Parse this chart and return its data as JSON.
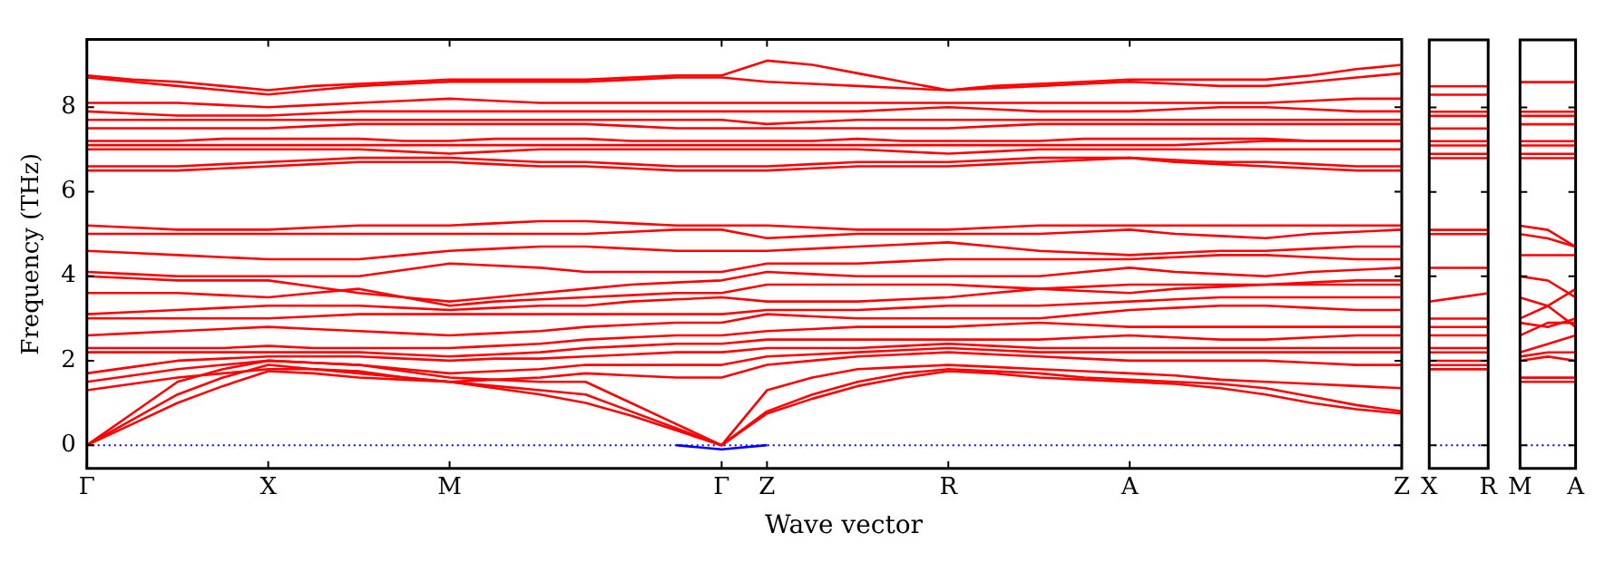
{
  "chart_data": [
    {
      "type": "line",
      "xlabel": "Wave vector",
      "ylabel": "Frequency (THz)",
      "marker": "none",
      "ylim": [
        -0.55,
        9.6
      ],
      "yticks": [
        0,
        2,
        4,
        6,
        8
      ],
      "categories": [
        "Γ",
        null,
        null,
        null,
        "X",
        null,
        null,
        null,
        "M",
        null,
        null,
        null,
        null,
        null,
        "Γ",
        "Z",
        null,
        null,
        null,
        "R",
        null,
        null,
        null,
        "A",
        null,
        null,
        null,
        null,
        null,
        "Z"
      ],
      "ref_lines": [
        {
          "axis": "y",
          "value": 0,
          "color": "#0000ff",
          "line_style": "dotted"
        }
      ],
      "series": [
        {
          "color": "#ff0000",
          "values": [
            0,
            0.5,
            1.0,
            1.4,
            1.75,
            1.7,
            1.6,
            1.55,
            1.5,
            1.35,
            1.2,
            1.0,
            0.7,
            0.35,
            0,
            0.75,
            1.1,
            1.4,
            1.6,
            1.75,
            1.7,
            1.6,
            1.55,
            1.5,
            1.45,
            1.35,
            1.2,
            1.0,
            0.85,
            0.75
          ]
        },
        {
          "color": "#ff0000",
          "values": [
            0,
            0.6,
            1.2,
            1.6,
            1.9,
            1.8,
            1.7,
            1.6,
            1.5,
            1.4,
            1.3,
            1.2,
            0.8,
            0.4,
            0,
            0.8,
            1.2,
            1.5,
            1.7,
            1.8,
            1.75,
            1.7,
            1.6,
            1.55,
            1.5,
            1.45,
            1.35,
            1.15,
            0.95,
            0.8
          ]
        },
        {
          "color": "#ff0000",
          "values": [
            0,
            0.75,
            1.5,
            1.8,
            2.0,
            1.95,
            1.9,
            1.75,
            1.6,
            1.55,
            1.5,
            1.5,
            1.0,
            0.5,
            0,
            1.3,
            1.6,
            1.8,
            1.85,
            1.9,
            1.85,
            1.8,
            1.75,
            1.7,
            1.65,
            1.55,
            1.5,
            1.45,
            1.4,
            1.35
          ]
        },
        {
          "color": "#ff0000",
          "values": [
            1.3,
            1.45,
            1.6,
            1.7,
            1.8,
            1.8,
            1.75,
            1.6,
            1.5,
            1.55,
            1.6,
            1.7,
            1.65,
            1.6,
            1.6,
            1.9,
            2.0,
            2.1,
            2.15,
            2.2,
            2.15,
            2.1,
            2.05,
            2.0,
            2.0,
            2.0,
            2.0,
            1.95,
            1.9,
            1.9
          ]
        },
        {
          "color": "#ff0000",
          "values": [
            1.5,
            1.65,
            1.8,
            1.9,
            2.0,
            1.95,
            1.9,
            1.8,
            1.7,
            1.75,
            1.8,
            1.9,
            1.9,
            1.9,
            1.9,
            2.1,
            2.15,
            2.2,
            2.25,
            2.3,
            2.25,
            2.2,
            2.2,
            2.2,
            2.2,
            2.2,
            2.2,
            2.2,
            2.2,
            2.2
          ]
        },
        {
          "color": "#ff0000",
          "values": [
            1.7,
            1.85,
            2.0,
            2.05,
            2.1,
            2.1,
            2.1,
            2.05,
            2.0,
            2.05,
            2.05,
            2.1,
            2.15,
            2.2,
            2.2,
            2.3,
            2.3,
            2.3,
            2.35,
            2.4,
            2.35,
            2.3,
            2.3,
            2.3,
            2.3,
            2.3,
            2.3,
            2.3,
            2.3,
            2.3
          ]
        },
        {
          "color": "#ff0000",
          "values": [
            2.2,
            2.2,
            2.2,
            2.2,
            2.2,
            2.2,
            2.2,
            2.15,
            2.1,
            2.15,
            2.2,
            2.3,
            2.35,
            2.4,
            2.4,
            2.5,
            2.5,
            2.5,
            2.5,
            2.5,
            2.5,
            2.5,
            2.55,
            2.6,
            2.55,
            2.5,
            2.5,
            2.55,
            2.6,
            2.6
          ]
        },
        {
          "color": "#ff0000",
          "values": [
            2.3,
            2.3,
            2.3,
            2.3,
            2.35,
            2.3,
            2.3,
            2.3,
            2.3,
            2.35,
            2.4,
            2.5,
            2.55,
            2.6,
            2.6,
            2.7,
            2.75,
            2.8,
            2.8,
            2.8,
            2.85,
            2.9,
            2.85,
            2.8,
            2.8,
            2.8,
            2.8,
            2.8,
            2.8,
            2.8
          ]
        },
        {
          "color": "#ff0000",
          "values": [
            2.6,
            2.65,
            2.7,
            2.75,
            2.8,
            2.75,
            2.7,
            2.65,
            2.6,
            2.65,
            2.7,
            2.8,
            2.85,
            2.9,
            2.9,
            3.1,
            3.05,
            3.0,
            3.0,
            3.0,
            3.0,
            3.0,
            3.1,
            3.2,
            3.25,
            3.3,
            3.3,
            3.25,
            3.2,
            3.2
          ]
        },
        {
          "color": "#ff0000",
          "values": [
            3.0,
            3.0,
            3.0,
            3.0,
            3.0,
            3.05,
            3.1,
            3.1,
            3.1,
            3.1,
            3.1,
            3.1,
            3.1,
            3.1,
            3.1,
            3.2,
            3.2,
            3.2,
            3.25,
            3.3,
            3.3,
            3.3,
            3.35,
            3.4,
            3.45,
            3.5,
            3.5,
            3.5,
            3.5,
            3.5
          ]
        },
        {
          "color": "#ff0000",
          "values": [
            3.1,
            3.15,
            3.2,
            3.25,
            3.3,
            3.3,
            3.3,
            3.25,
            3.2,
            3.25,
            3.3,
            3.3,
            3.4,
            3.45,
            3.5,
            3.4,
            3.4,
            3.4,
            3.45,
            3.5,
            3.6,
            3.7,
            3.75,
            3.8,
            3.8,
            3.8,
            3.8,
            3.85,
            3.9,
            3.9
          ]
        },
        {
          "color": "#ff0000",
          "values": [
            3.6,
            3.6,
            3.6,
            3.55,
            3.5,
            3.6,
            3.7,
            3.5,
            3.3,
            3.4,
            3.45,
            3.5,
            3.55,
            3.6,
            3.6,
            3.8,
            3.8,
            3.8,
            3.8,
            3.8,
            3.75,
            3.7,
            3.65,
            3.6,
            3.7,
            3.75,
            3.8,
            3.8,
            3.8,
            3.8
          ]
        },
        {
          "color": "#ff0000",
          "values": [
            4.0,
            3.95,
            3.9,
            3.9,
            3.9,
            3.75,
            3.6,
            3.5,
            3.4,
            3.5,
            3.6,
            3.7,
            3.8,
            3.85,
            3.9,
            4.1,
            4.05,
            4.0,
            4.0,
            4.0,
            4.0,
            4.0,
            4.1,
            4.2,
            4.1,
            4.05,
            4.0,
            4.1,
            4.15,
            4.2
          ]
        },
        {
          "color": "#ff0000",
          "values": [
            4.1,
            4.05,
            4.0,
            4.0,
            4.0,
            4.0,
            4.0,
            4.15,
            4.3,
            4.25,
            4.2,
            4.1,
            4.1,
            4.1,
            4.1,
            4.3,
            4.3,
            4.3,
            4.35,
            4.4,
            4.4,
            4.4,
            4.4,
            4.4,
            4.45,
            4.5,
            4.5,
            4.45,
            4.4,
            4.4
          ]
        },
        {
          "color": "#ff0000",
          "values": [
            4.6,
            4.55,
            4.5,
            4.45,
            4.4,
            4.4,
            4.4,
            4.5,
            4.6,
            4.65,
            4.7,
            4.7,
            4.65,
            4.6,
            4.6,
            4.6,
            4.65,
            4.7,
            4.75,
            4.8,
            4.7,
            4.6,
            4.55,
            4.5,
            4.55,
            4.6,
            4.6,
            4.65,
            4.7,
            4.7
          ]
        },
        {
          "color": "#ff0000",
          "values": [
            5.0,
            5.0,
            5.0,
            5.0,
            5.0,
            5.0,
            5.0,
            5.0,
            5.0,
            5.0,
            5.0,
            5.0,
            5.05,
            5.1,
            5.1,
            4.9,
            4.95,
            5.0,
            5.0,
            5.0,
            5.0,
            5.0,
            5.05,
            5.1,
            5.0,
            4.95,
            4.9,
            5.0,
            5.05,
            5.1
          ]
        },
        {
          "color": "#ff0000",
          "values": [
            5.2,
            5.15,
            5.1,
            5.1,
            5.1,
            5.15,
            5.2,
            5.2,
            5.2,
            5.25,
            5.3,
            5.3,
            5.25,
            5.2,
            5.2,
            5.2,
            5.15,
            5.1,
            5.1,
            5.1,
            5.15,
            5.2,
            5.2,
            5.2,
            5.2,
            5.2,
            5.2,
            5.2,
            5.2,
            5.2
          ]
        },
        {
          "color": "#ff0000",
          "values": [
            6.5,
            6.5,
            6.5,
            6.55,
            6.6,
            6.65,
            6.7,
            6.7,
            6.7,
            6.65,
            6.6,
            6.6,
            6.55,
            6.5,
            6.5,
            6.5,
            6.55,
            6.6,
            6.6,
            6.6,
            6.65,
            6.7,
            6.75,
            6.8,
            6.7,
            6.65,
            6.6,
            6.55,
            6.5,
            6.5
          ]
        },
        {
          "color": "#ff0000",
          "values": [
            6.6,
            6.6,
            6.6,
            6.65,
            6.7,
            6.75,
            6.8,
            6.8,
            6.8,
            6.75,
            6.7,
            6.7,
            6.65,
            6.6,
            6.6,
            6.6,
            6.65,
            6.7,
            6.7,
            6.7,
            6.75,
            6.8,
            6.8,
            6.8,
            6.75,
            6.7,
            6.7,
            6.65,
            6.6,
            6.6
          ]
        },
        {
          "color": "#ff0000",
          "values": [
            7.0,
            7.0,
            7.0,
            7.0,
            7.0,
            7.0,
            7.0,
            6.95,
            6.9,
            6.95,
            7.0,
            7.0,
            7.0,
            7.0,
            7.0,
            7.0,
            7.0,
            7.0,
            6.95,
            6.9,
            6.95,
            7.0,
            7.0,
            7.0,
            7.0,
            7.0,
            7.0,
            7.0,
            7.0,
            7.0
          ]
        },
        {
          "color": "#ff0000",
          "values": [
            7.1,
            7.1,
            7.1,
            7.1,
            7.1,
            7.1,
            7.1,
            7.1,
            7.1,
            7.1,
            7.1,
            7.1,
            7.1,
            7.1,
            7.1,
            7.1,
            7.1,
            7.1,
            7.1,
            7.1,
            7.1,
            7.1,
            7.1,
            7.1,
            7.1,
            7.15,
            7.2,
            7.2,
            7.2,
            7.2
          ]
        },
        {
          "color": "#ff0000",
          "values": [
            7.2,
            7.2,
            7.2,
            7.25,
            7.25,
            7.25,
            7.25,
            7.2,
            7.2,
            7.25,
            7.25,
            7.25,
            7.2,
            7.2,
            7.2,
            7.2,
            7.2,
            7.25,
            7.2,
            7.2,
            7.2,
            7.2,
            7.25,
            7.25,
            7.25,
            7.25,
            7.25,
            7.2,
            7.2,
            7.2
          ]
        },
        {
          "color": "#ff0000",
          "values": [
            7.5,
            7.5,
            7.5,
            7.5,
            7.5,
            7.55,
            7.6,
            7.6,
            7.6,
            7.6,
            7.6,
            7.6,
            7.55,
            7.5,
            7.5,
            7.5,
            7.5,
            7.5,
            7.5,
            7.5,
            7.55,
            7.6,
            7.6,
            7.6,
            7.6,
            7.6,
            7.6,
            7.6,
            7.6,
            7.6
          ]
        },
        {
          "color": "#ff0000",
          "values": [
            7.7,
            7.7,
            7.7,
            7.7,
            7.7,
            7.7,
            7.7,
            7.7,
            7.7,
            7.7,
            7.7,
            7.7,
            7.7,
            7.7,
            7.7,
            7.6,
            7.65,
            7.7,
            7.7,
            7.7,
            7.7,
            7.7,
            7.7,
            7.7,
            7.7,
            7.7,
            7.7,
            7.7,
            7.7,
            7.7
          ]
        },
        {
          "color": "#ff0000",
          "values": [
            7.9,
            7.85,
            7.8,
            7.8,
            7.8,
            7.85,
            7.9,
            7.9,
            7.9,
            7.9,
            7.9,
            7.9,
            7.9,
            7.9,
            7.9,
            7.9,
            7.9,
            7.9,
            7.95,
            8.0,
            7.95,
            7.9,
            7.9,
            7.9,
            7.95,
            8.0,
            8.0,
            7.95,
            7.9,
            7.9
          ]
        },
        {
          "color": "#ff0000",
          "values": [
            8.1,
            8.1,
            8.1,
            8.05,
            8.0,
            8.05,
            8.1,
            8.15,
            8.2,
            8.15,
            8.1,
            8.1,
            8.1,
            8.1,
            8.1,
            8.1,
            8.1,
            8.1,
            8.1,
            8.1,
            8.1,
            8.1,
            8.1,
            8.1,
            8.1,
            8.1,
            8.1,
            8.15,
            8.2,
            8.2
          ]
        },
        {
          "color": "#ff0000",
          "values": [
            8.7,
            8.6,
            8.5,
            8.4,
            8.3,
            8.4,
            8.5,
            8.55,
            8.6,
            8.6,
            8.6,
            8.6,
            8.65,
            8.7,
            8.7,
            8.6,
            8.55,
            8.5,
            8.45,
            8.4,
            8.45,
            8.5,
            8.55,
            8.6,
            8.55,
            8.5,
            8.5,
            8.6,
            8.7,
            8.8
          ]
        },
        {
          "color": "#ff0000",
          "values": [
            8.75,
            8.65,
            8.6,
            8.5,
            8.4,
            8.5,
            8.55,
            8.6,
            8.65,
            8.65,
            8.65,
            8.65,
            8.7,
            8.75,
            8.75,
            9.1,
            9.0,
            8.8,
            8.6,
            8.4,
            8.5,
            8.55,
            8.6,
            8.65,
            8.65,
            8.65,
            8.65,
            8.75,
            8.9,
            9.0
          ]
        },
        {
          "color": "#0000ff",
          "values": [
            null,
            null,
            null,
            null,
            null,
            null,
            null,
            null,
            null,
            null,
            null,
            null,
            null,
            0,
            -0.1,
            0,
            null,
            null,
            null,
            null,
            null,
            null,
            null,
            null,
            null,
            null,
            null,
            null,
            null,
            null
          ]
        }
      ]
    },
    {
      "type": "line",
      "marker": "none",
      "tick_labels": "x",
      "ylim": [
        -0.55,
        9.6
      ],
      "yticks": [
        0,
        2,
        4,
        6,
        8
      ],
      "categories": [
        "X",
        null,
        "R"
      ],
      "ref_lines": [
        {
          "axis": "y",
          "value": 0,
          "color": "#0000ff",
          "line_style": "dotted"
        }
      ],
      "series": [
        {
          "color": "#ff0000",
          "values": [
            1.8,
            1.8,
            1.8
          ]
        },
        {
          "color": "#ff0000",
          "values": [
            1.9,
            1.9,
            1.9
          ]
        },
        {
          "color": "#ff0000",
          "values": [
            2.0,
            2.0,
            2.0
          ]
        },
        {
          "color": "#ff0000",
          "values": [
            2.2,
            2.2,
            2.2
          ]
        },
        {
          "color": "#ff0000",
          "values": [
            2.3,
            2.3,
            2.3
          ]
        },
        {
          "color": "#ff0000",
          "values": [
            2.6,
            2.6,
            2.6
          ]
        },
        {
          "color": "#ff0000",
          "values": [
            2.8,
            2.8,
            2.8
          ]
        },
        {
          "color": "#ff0000",
          "values": [
            3.0,
            3.0,
            3.0
          ]
        },
        {
          "color": "#ff0000",
          "values": [
            3.4,
            3.5,
            3.6
          ]
        },
        {
          "color": "#ff0000",
          "values": [
            4.2,
            4.2,
            4.2
          ]
        },
        {
          "color": "#ff0000",
          "values": [
            5.0,
            5.0,
            5.0
          ]
        },
        {
          "color": "#ff0000",
          "values": [
            5.1,
            5.1,
            5.1
          ]
        },
        {
          "color": "#ff0000",
          "values": [
            6.8,
            6.8,
            6.8
          ]
        },
        {
          "color": "#ff0000",
          "values": [
            6.9,
            6.9,
            6.9
          ]
        },
        {
          "color": "#ff0000",
          "values": [
            7.1,
            7.1,
            7.1
          ]
        },
        {
          "color": "#ff0000",
          "values": [
            7.2,
            7.2,
            7.2
          ]
        },
        {
          "color": "#ff0000",
          "values": [
            7.5,
            7.5,
            7.5
          ]
        },
        {
          "color": "#ff0000",
          "values": [
            7.8,
            7.8,
            7.8
          ]
        },
        {
          "color": "#ff0000",
          "values": [
            7.9,
            7.9,
            7.9
          ]
        },
        {
          "color": "#ff0000",
          "values": [
            8.3,
            8.3,
            8.3
          ]
        },
        {
          "color": "#ff0000",
          "values": [
            8.5,
            8.5,
            8.5
          ]
        }
      ]
    },
    {
      "type": "line",
      "marker": "none",
      "tick_labels": "x",
      "ylim": [
        -0.55,
        9.6
      ],
      "yticks": [
        0,
        2,
        4,
        6,
        8
      ],
      "categories": [
        "M",
        null,
        "A"
      ],
      "ref_lines": [
        {
          "axis": "y",
          "value": 0,
          "color": "#0000ff",
          "line_style": "dotted"
        }
      ],
      "series": [
        {
          "color": "#ff0000",
          "values": [
            1.5,
            1.5,
            1.5
          ]
        },
        {
          "color": "#ff0000",
          "values": [
            1.6,
            1.6,
            1.6
          ]
        },
        {
          "color": "#ff0000",
          "values": [
            2.0,
            2.1,
            2.0
          ]
        },
        {
          "color": "#ff0000",
          "values": [
            2.1,
            2.2,
            2.2
          ]
        },
        {
          "color": "#ff0000",
          "values": [
            2.2,
            2.4,
            2.6
          ]
        },
        {
          "color": "#ff0000",
          "values": [
            2.6,
            2.9,
            2.9
          ]
        },
        {
          "color": "#ff0000",
          "values": [
            2.9,
            2.8,
            3.0
          ]
        },
        {
          "color": "#ff0000",
          "values": [
            3.0,
            3.3,
            3.7
          ]
        },
        {
          "color": "#ff0000",
          "values": [
            3.5,
            3.3,
            2.8
          ]
        },
        {
          "color": "#ff0000",
          "values": [
            4.0,
            3.9,
            3.5
          ]
        },
        {
          "color": "#ff0000",
          "values": [
            4.5,
            4.5,
            4.5
          ]
        },
        {
          "color": "#ff0000",
          "values": [
            5.0,
            4.9,
            4.7
          ]
        },
        {
          "color": "#ff0000",
          "values": [
            5.2,
            5.1,
            4.7
          ]
        },
        {
          "color": "#ff0000",
          "values": [
            6.8,
            6.8,
            6.8
          ]
        },
        {
          "color": "#ff0000",
          "values": [
            6.9,
            6.9,
            6.9
          ]
        },
        {
          "color": "#ff0000",
          "values": [
            7.1,
            7.1,
            7.1
          ]
        },
        {
          "color": "#ff0000",
          "values": [
            7.2,
            7.2,
            7.2
          ]
        },
        {
          "color": "#ff0000",
          "values": [
            7.6,
            7.6,
            7.6
          ]
        },
        {
          "color": "#ff0000",
          "values": [
            7.8,
            7.8,
            7.8
          ]
        },
        {
          "color": "#ff0000",
          "values": [
            7.9,
            7.9,
            7.9
          ]
        },
        {
          "color": "#ff0000",
          "values": [
            8.6,
            8.6,
            8.6
          ]
        }
      ]
    }
  ]
}
